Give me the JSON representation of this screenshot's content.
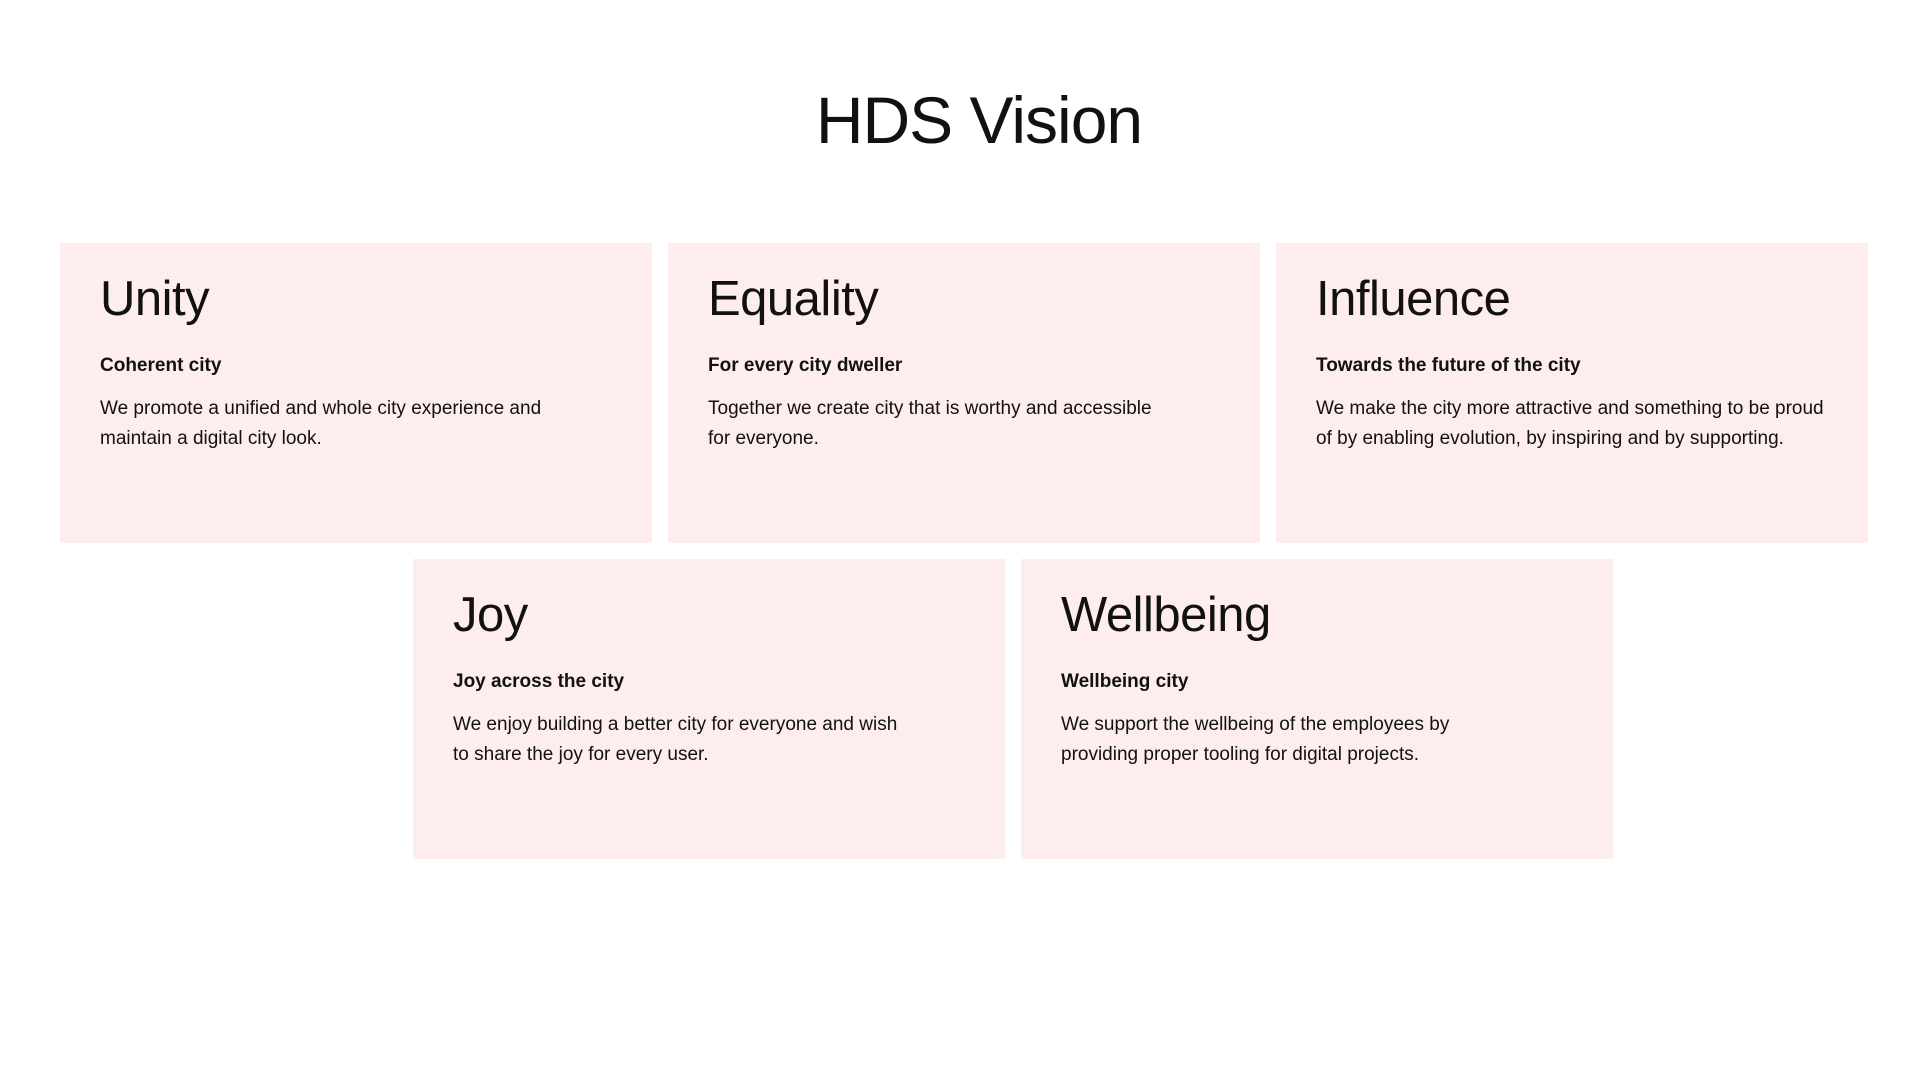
{
  "page": {
    "title": "HDS Vision"
  },
  "colors": {
    "background": "#ffffff",
    "card_background": "#fdeded",
    "text": "#111111"
  },
  "cards": [
    {
      "title": "Unity",
      "subtitle": "Coherent city",
      "text": "We promote a unified and whole city experience and maintain a digital city look."
    },
    {
      "title": "Equality",
      "subtitle": "For every city dweller",
      "text": "Together we create city that is worthy and accessible for everyone."
    },
    {
      "title": "Influence",
      "subtitle": "Towards the future of the city",
      "text": "We make the city more attractive and something to be proud of by enabling evolution, by inspiring and by supporting."
    },
    {
      "title": "Joy",
      "subtitle": "Joy across the city",
      "text": "We enjoy building a better city for everyone and wish to share the joy for every user."
    },
    {
      "title": "Wellbeing",
      "subtitle": "Wellbeing city",
      "text": "We support the wellbeing of the employees by providing proper tooling for digital projects."
    }
  ]
}
